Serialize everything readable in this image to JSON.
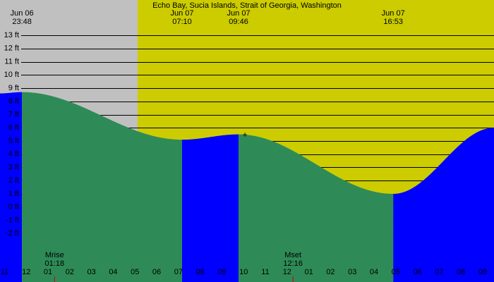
{
  "chart_data": {
    "type": "tide",
    "title": "Echo Bay, Sucia Islands, Strait of Georgia, Washington",
    "xlim": [
      22.79,
      45.52
    ],
    "ylim": [
      -5.67,
      15.67
    ],
    "yticks": [
      {
        "value": 13,
        "label": "13 ft"
      },
      {
        "value": 12,
        "label": "12 ft"
      },
      {
        "value": 11,
        "label": "11 ft"
      },
      {
        "value": 10,
        "label": "10 ft"
      },
      {
        "value": 9,
        "label": "9 ft"
      },
      {
        "value": 8,
        "label": "8 ft"
      },
      {
        "value": 7,
        "label": "7 ft"
      },
      {
        "value": 6,
        "label": "6 ft"
      },
      {
        "value": 5,
        "label": "5 ft"
      },
      {
        "value": 4,
        "label": "4 ft"
      },
      {
        "value": 3,
        "label": "3 ft"
      },
      {
        "value": 2,
        "label": "2 ft"
      },
      {
        "value": 1,
        "label": "1 ft"
      },
      {
        "value": 0,
        "label": "0 ft"
      },
      {
        "value": -1,
        "label": "-1 ft"
      },
      {
        "value": -2,
        "label": "-2 ft"
      }
    ],
    "xticks": [
      {
        "value": 23,
        "label": "11"
      },
      {
        "value": 24,
        "label": "12"
      },
      {
        "value": 25,
        "label": "01"
      },
      {
        "value": 26,
        "label": "02"
      },
      {
        "value": 27,
        "label": "03"
      },
      {
        "value": 28,
        "label": "04"
      },
      {
        "value": 29,
        "label": "05"
      },
      {
        "value": 30,
        "label": "06"
      },
      {
        "value": 31,
        "label": "07"
      },
      {
        "value": 32,
        "label": "08"
      },
      {
        "value": 33,
        "label": "09"
      },
      {
        "value": 34,
        "label": "10"
      },
      {
        "value": 35,
        "label": "11"
      },
      {
        "value": 36,
        "label": "12"
      },
      {
        "value": 37,
        "label": "01"
      },
      {
        "value": 38,
        "label": "02"
      },
      {
        "value": 39,
        "label": "03"
      },
      {
        "value": 40,
        "label": "04"
      },
      {
        "value": 41,
        "label": "05"
      },
      {
        "value": 42,
        "label": "06"
      },
      {
        "value": 43,
        "label": "07"
      },
      {
        "value": 44,
        "label": "08"
      },
      {
        "value": 45,
        "label": "09"
      }
    ],
    "night_color": "#c0c0c0",
    "daylight": {
      "start": 29.12,
      "color": "#cccc00"
    },
    "rising_color": "#0000ff",
    "falling_color": "#2e8b57",
    "series": [
      {
        "name": "Tide",
        "x": [
          22.79,
          23.8,
          31.167,
          33.767,
          40.883,
          45.52
        ],
        "values": [
          8.6,
          8.7,
          5.1,
          5.5,
          1.0,
          6.0
        ]
      }
    ],
    "events": [
      {
        "date": "Jun 06",
        "time": "23:48"
      },
      {
        "date": "Jun 07",
        "time": "07:10"
      },
      {
        "date": "Jun 07",
        "time": "09:46"
      },
      {
        "date": "Jun 07",
        "time": "16:53"
      }
    ],
    "moon": [
      {
        "label": "Mrise",
        "time": "01:18",
        "x": 25.3
      },
      {
        "label": "Mset",
        "time": "12:16",
        "x": 36.27
      }
    ]
  }
}
